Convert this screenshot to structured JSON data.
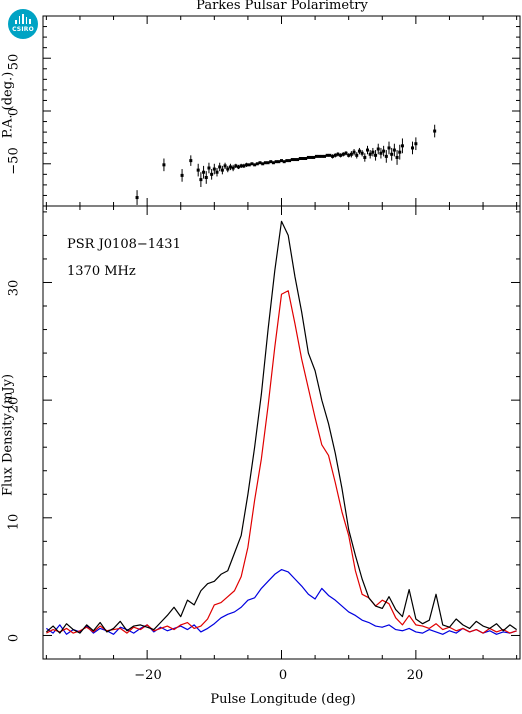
{
  "header": {
    "title": "Parkes Pulsar Polarimetry",
    "logo_text": "CSIRO"
  },
  "colors": {
    "total_intensity": "#000000",
    "linear_polarization": "#e00000",
    "circular_polarization": "#0000e0",
    "logo": "#00a3c4"
  },
  "chart_data": [
    {
      "type": "scatter",
      "title": "Parkes Pulsar Polarimetry",
      "xlabel": "",
      "ylabel": "P.A. (deg.)",
      "xlim": [
        -35.5,
        35.5
      ],
      "ylim": [
        -90,
        90
      ],
      "xticks": [
        -20,
        0,
        20
      ],
      "yticks": [
        -50,
        0,
        50
      ],
      "ytick_labels": [
        "−50",
        "0",
        "50"
      ],
      "grid": false,
      "error_bars": true,
      "series": [
        {
          "x": [
            -21.5,
            -17.5,
            -14.8,
            -13.5,
            -12.4,
            -12.0,
            -11.6,
            -11.2,
            -10.8,
            -10.4,
            -10.0,
            -9.6,
            -9.2,
            -8.8,
            -8.4,
            -8.0,
            -7.6,
            -7.2,
            -6.8,
            -6.4,
            -6.0,
            -5.6,
            -5.2,
            -4.8,
            -4.4,
            -4.0,
            -3.6,
            -3.2,
            -2.8,
            -2.4,
            -2.0,
            -1.6,
            -1.2,
            -0.8,
            -0.4,
            0.0,
            0.4,
            0.8,
            1.2,
            1.6,
            2.0,
            2.4,
            2.8,
            3.2,
            3.6,
            4.0,
            4.4,
            4.8,
            5.2,
            5.6,
            6.0,
            6.4,
            6.8,
            7.2,
            7.6,
            8.0,
            8.4,
            8.8,
            9.2,
            9.6,
            10.0,
            10.4,
            10.8,
            11.2,
            11.6,
            12.0,
            12.4,
            12.8,
            13.2,
            13.6,
            14.0,
            14.4,
            14.8,
            15.2,
            15.6,
            16.0,
            16.4,
            16.8,
            17.2,
            17.6,
            18.0,
            19.5,
            20.0,
            22.8
          ],
          "y": [
            -82,
            -51,
            -61,
            -47,
            -56,
            -65,
            -58,
            -63,
            -54,
            -60,
            -55,
            -58,
            -53,
            -56,
            -52,
            -55,
            -53,
            -54,
            -52,
            -53,
            -52,
            -52,
            -51,
            -51,
            -50,
            -51,
            -50,
            -49,
            -50,
            -49,
            -49,
            -48,
            -49,
            -48,
            -48,
            -47,
            -48,
            -47,
            -47,
            -46,
            -46,
            -46,
            -45,
            -45,
            -45,
            -44,
            -44,
            -44,
            -43,
            -43,
            -43,
            -43,
            -42,
            -42,
            -43,
            -42,
            -41,
            -42,
            -41,
            -40,
            -42,
            -41,
            -39,
            -42,
            -38,
            -40,
            -44,
            -37,
            -41,
            -39,
            -42,
            -36,
            -40,
            -38,
            -43,
            -35,
            -41,
            -37,
            -44,
            -39,
            -33,
            -35,
            -31,
            -19
          ],
          "err": [
            7,
            6,
            6,
            5,
            6,
            7,
            6,
            6,
            5,
            5,
            5,
            4,
            4,
            4,
            3,
            3,
            3,
            3,
            2,
            2,
            2,
            2,
            2,
            1,
            1,
            1,
            1,
            1,
            1,
            1,
            1,
            1,
            1,
            1,
            1,
            1,
            1,
            1,
            1,
            1,
            1,
            1,
            1,
            1,
            1,
            1,
            1,
            1,
            1,
            1,
            1,
            1,
            1,
            1,
            2,
            2,
            2,
            2,
            2,
            2,
            2,
            3,
            3,
            3,
            3,
            3,
            4,
            4,
            4,
            4,
            5,
            5,
            5,
            5,
            6,
            6,
            6,
            6,
            7,
            7,
            7,
            6,
            6,
            6
          ]
        }
      ]
    },
    {
      "type": "line",
      "xlabel": "Pulse Longitude (deg)",
      "ylabel": "Flux Density (mJy)",
      "xlim": [
        -35.5,
        35.5
      ],
      "ylim": [
        -2,
        36.5
      ],
      "xticks": [
        -20,
        0,
        20
      ],
      "xtick_labels": [
        "−20",
        "0",
        "20"
      ],
      "yticks": [
        0,
        10,
        20,
        30
      ],
      "grid": false,
      "annotations": [
        "PSR J0108−1431",
        "1370 MHz"
      ],
      "x": [
        -35,
        -34,
        -33,
        -32,
        -31,
        -30,
        -29,
        -28,
        -27,
        -26,
        -25,
        -24,
        -23,
        -22,
        -21,
        -20,
        -19,
        -18,
        -17,
        -16,
        -15,
        -14,
        -13,
        -12,
        -11,
        -10,
        -9,
        -8,
        -7,
        -6,
        -5,
        -4,
        -3,
        -2,
        -1,
        0,
        1,
        2,
        3,
        4,
        5,
        6,
        7,
        8,
        9,
        10,
        11,
        12,
        13,
        14,
        15,
        16,
        17,
        18,
        19,
        20,
        21,
        22,
        23,
        24,
        25,
        26,
        27,
        28,
        29,
        30,
        31,
        32,
        33,
        34,
        35
      ],
      "series": [
        {
          "values": [
            0.3,
            0.8,
            0.2,
            1.0,
            0.5,
            0.2,
            0.9,
            0.4,
            1.1,
            0.3,
            0.6,
            1.2,
            0.4,
            0.8,
            0.9,
            0.7,
            0.5,
            1.1,
            1.7,
            2.4,
            1.6,
            3.0,
            2.6,
            3.8,
            4.4,
            4.6,
            5.2,
            5.5,
            7.0,
            8.5,
            12.0,
            16.0,
            20.5,
            26.0,
            31.0,
            35.2,
            34.0,
            30.5,
            27.5,
            24.0,
            22.5,
            20.0,
            18.0,
            15.5,
            12.5,
            9.0,
            6.8,
            4.8,
            3.2,
            2.5,
            2.3,
            3.3,
            2.2,
            1.6,
            3.9,
            1.4,
            1.0,
            1.3,
            3.5,
            0.9,
            0.7,
            1.4,
            0.9,
            0.6,
            1.2,
            0.8,
            0.6,
            1.0,
            0.4,
            0.9,
            0.5
          ]
        },
        {
          "values": [
            0.2,
            0.5,
            0.3,
            0.6,
            0.2,
            0.4,
            0.7,
            0.3,
            0.8,
            0.4,
            0.5,
            0.6,
            0.2,
            0.7,
            0.5,
            0.9,
            0.4,
            0.6,
            0.8,
            0.5,
            0.9,
            1.1,
            0.6,
            0.8,
            1.4,
            2.6,
            2.8,
            3.3,
            3.8,
            5.0,
            7.5,
            11.5,
            15.0,
            19.5,
            24.5,
            29.0,
            29.3,
            26.5,
            23.5,
            21.0,
            18.5,
            16.2,
            15.3,
            13.0,
            10.5,
            8.5,
            5.5,
            3.5,
            3.2,
            2.5,
            3.0,
            2.7,
            1.5,
            0.9,
            1.7,
            0.9,
            0.8,
            0.6,
            1.0,
            0.5,
            0.7,
            0.4,
            0.6,
            0.3,
            0.5,
            0.2,
            0.6,
            0.3,
            0.5,
            0.2,
            0.4
          ]
        },
        {
          "values": [
            0.6,
            0.2,
            0.9,
            0.1,
            0.5,
            0.3,
            0.8,
            0.2,
            0.6,
            0.4,
            0.1,
            0.7,
            0.5,
            0.2,
            0.6,
            0.9,
            0.3,
            0.7,
            0.4,
            0.6,
            0.8,
            0.5,
            0.9,
            0.3,
            0.6,
            1.0,
            1.5,
            1.8,
            2.0,
            2.4,
            3.0,
            3.2,
            4.0,
            4.6,
            5.2,
            5.6,
            5.4,
            4.8,
            4.2,
            3.5,
            3.1,
            4.0,
            3.4,
            3.0,
            2.5,
            2.0,
            1.7,
            1.3,
            1.1,
            0.8,
            0.7,
            0.9,
            0.5,
            0.4,
            0.6,
            0.3,
            0.2,
            0.5,
            0.3,
            0.1,
            0.4,
            0.2,
            0.6,
            0.3,
            0.5,
            0.2,
            0.4,
            0.1,
            0.3,
            0.2,
            0.4
          ]
        }
      ]
    }
  ]
}
